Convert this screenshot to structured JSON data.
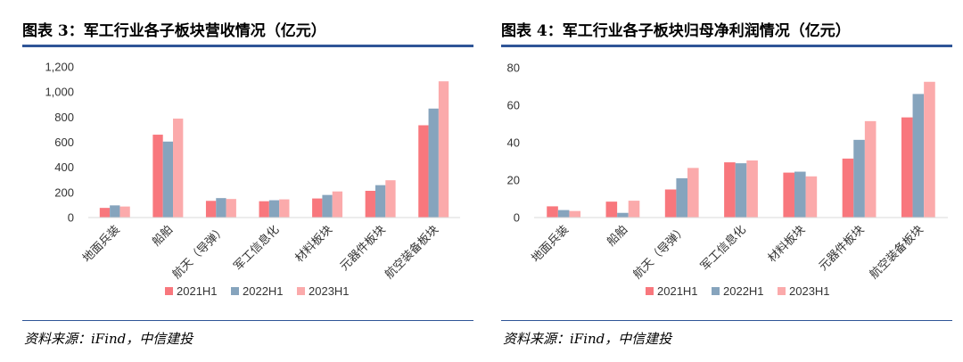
{
  "colors": [
    "#f8777d",
    "#86a4bd",
    "#fbaaab"
  ],
  "charts": [
    {
      "title": "图表 3：军工行业各子板块营收情况（亿元）",
      "source": "资料来源：iFind，中信建投"
    },
    {
      "title": "图表 4：军工行业各子板块归母净利润情况（亿元）",
      "source": "资料来源：iFind，中信建投"
    }
  ],
  "chart_data": [
    {
      "type": "bar",
      "title": "图表 3：军工行业各子板块营收情况（亿元）",
      "categories": [
        "地面兵装",
        "船舶",
        "航天（导弹）",
        "军工信息化",
        "材料板块",
        "元器件板块",
        "航空装备板块"
      ],
      "series": [
        {
          "name": "2021H1",
          "values": [
            77,
            660,
            133,
            130,
            152,
            213,
            735
          ]
        },
        {
          "name": "2022H1",
          "values": [
            97,
            605,
            155,
            138,
            180,
            258,
            868
          ]
        },
        {
          "name": "2023H1",
          "values": [
            88,
            788,
            148,
            145,
            208,
            297,
            1085
          ]
        }
      ],
      "ylim": [
        0,
        1200
      ],
      "yticks": [
        "0",
        "200",
        "400",
        "600",
        "800",
        "1,000",
        "1,200"
      ],
      "grid": false,
      "legend": "bottom"
    },
    {
      "type": "bar",
      "title": "图表 4：军工行业各子板块归母净利润情况（亿元）",
      "categories": [
        "地面兵装",
        "船舶",
        "航天（导弹）",
        "军工信息化",
        "材料板块",
        "元器件板块",
        "航空装备板块"
      ],
      "series": [
        {
          "name": "2021H1",
          "values": [
            6,
            8.5,
            15,
            29.5,
            24,
            31.5,
            53.5
          ]
        },
        {
          "name": "2022H1",
          "values": [
            4,
            2.5,
            21,
            29,
            24.5,
            41.5,
            66
          ]
        },
        {
          "name": "2023H1",
          "values": [
            3.5,
            9,
            26.5,
            30.5,
            22,
            51.5,
            72.5
          ]
        }
      ],
      "ylim": [
        0,
        80
      ],
      "yticks": [
        "0",
        "20",
        "40",
        "60",
        "80"
      ],
      "grid": false,
      "legend": "bottom"
    }
  ]
}
